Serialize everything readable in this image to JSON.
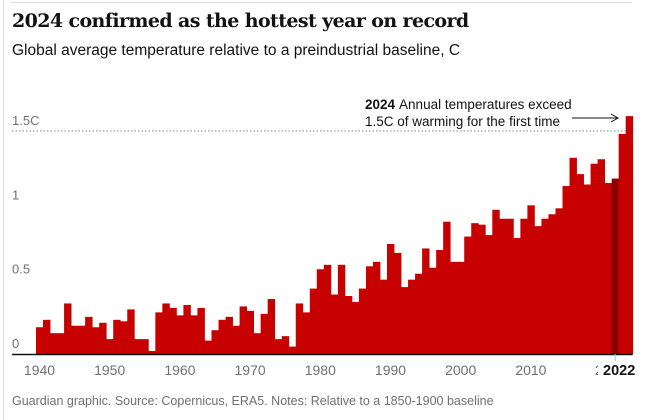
{
  "header": {
    "title": "2024 confirmed as the hottest year on record",
    "subtitle": "Global average temperature relative to a preindustrial baseline, C"
  },
  "footer": "Guardian graphic. Source: Copernicus, ERA5. Notes: Relative to a 1850-1900 baseline",
  "colors": {
    "bar": "#c70000",
    "highlight_bar": "#8b0000",
    "axis": "#121212",
    "reference_line": "#999999"
  },
  "chart_data": {
    "type": "bar",
    "title": "2024 confirmed as the hottest year on record",
    "subtitle": "Global average temperature relative to a preindustrial baseline, C",
    "xlabel": "",
    "ylabel": "",
    "ylim": [
      0,
      1.5
    ],
    "grid": false,
    "y_ticks": [
      {
        "value": 0,
        "label": "0"
      },
      {
        "value": 0.5,
        "label": "0.5"
      },
      {
        "value": 1,
        "label": "1"
      },
      {
        "value": 1.5,
        "label": "1.5C"
      }
    ],
    "x_ticks": [
      {
        "year": 1940,
        "label": "1940"
      },
      {
        "year": 1950,
        "label": "1950"
      },
      {
        "year": 1960,
        "label": "1960"
      },
      {
        "year": 1970,
        "label": "1970"
      },
      {
        "year": 1980,
        "label": "1980"
      },
      {
        "year": 1990,
        "label": "1990"
      },
      {
        "year": 2000,
        "label": "2000"
      },
      {
        "year": 2010,
        "label": "2010"
      },
      {
        "year": 2020,
        "label": "2("
      }
    ],
    "highlighted_tick": {
      "year": 2022,
      "label": "2022"
    },
    "reference_line": {
      "value": 1.5,
      "style": "dotted"
    },
    "highlighted_year": 2022,
    "annotation": {
      "year": 2024,
      "bold": "2024",
      "line1": "Annual temperatures exceed",
      "line2": "1.5C of warming for the first time"
    },
    "categories": [
      1940,
      1941,
      1942,
      1943,
      1944,
      1945,
      1946,
      1947,
      1948,
      1949,
      1950,
      1951,
      1952,
      1953,
      1954,
      1955,
      1956,
      1957,
      1958,
      1959,
      1960,
      1961,
      1962,
      1963,
      1964,
      1965,
      1966,
      1967,
      1968,
      1969,
      1970,
      1971,
      1972,
      1973,
      1974,
      1975,
      1976,
      1977,
      1978,
      1979,
      1980,
      1981,
      1982,
      1983,
      1984,
      1985,
      1986,
      1987,
      1988,
      1989,
      1990,
      1991,
      1992,
      1993,
      1994,
      1995,
      1996,
      1997,
      1998,
      1999,
      2000,
      2001,
      2002,
      2003,
      2004,
      2005,
      2006,
      2007,
      2008,
      2009,
      2010,
      2011,
      2012,
      2013,
      2014,
      2015,
      2016,
      2017,
      2018,
      2019,
      2020,
      2021,
      2022,
      2023,
      2024
    ],
    "values": [
      0.18,
      0.23,
      0.14,
      0.14,
      0.34,
      0.19,
      0.19,
      0.25,
      0.18,
      0.21,
      0.1,
      0.23,
      0.22,
      0.3,
      0.1,
      0.1,
      0.02,
      0.28,
      0.34,
      0.31,
      0.26,
      0.33,
      0.26,
      0.31,
      0.09,
      0.16,
      0.23,
      0.25,
      0.19,
      0.32,
      0.29,
      0.14,
      0.27,
      0.37,
      0.1,
      0.12,
      0.05,
      0.34,
      0.28,
      0.44,
      0.57,
      0.6,
      0.4,
      0.6,
      0.39,
      0.35,
      0.44,
      0.59,
      0.62,
      0.5,
      0.74,
      0.68,
      0.45,
      0.5,
      0.54,
      0.71,
      0.58,
      0.7,
      0.89,
      0.62,
      0.62,
      0.79,
      0.88,
      0.87,
      0.8,
      0.97,
      0.91,
      0.91,
      0.78,
      0.91,
      1.0,
      0.86,
      0.91,
      0.94,
      0.98,
      1.13,
      1.32,
      1.21,
      1.14,
      1.28,
      1.31,
      1.15,
      1.18,
      1.48,
      1.6
    ]
  }
}
